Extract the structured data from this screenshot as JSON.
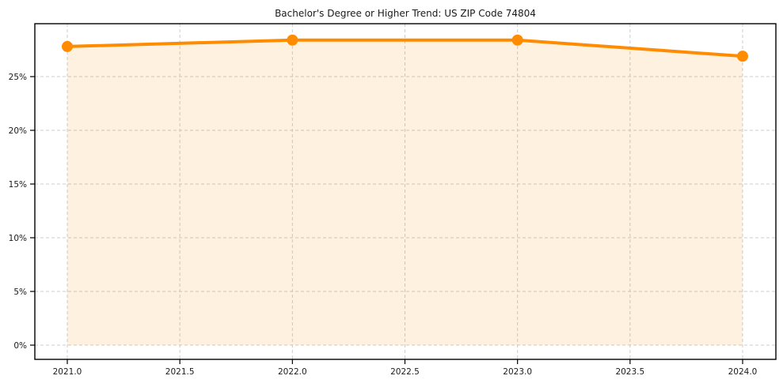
{
  "chart_data": {
    "type": "line",
    "title": "Bachelor's Degree or Higher Trend: US ZIP Code 74804",
    "x": [
      2021,
      2022,
      2023,
      2024
    ],
    "values": [
      27.8,
      28.4,
      28.4,
      26.9
    ],
    "x_ticks": [
      2021.0,
      2021.5,
      2022.0,
      2022.5,
      2023.0,
      2023.5,
      2024.0
    ],
    "x_tick_labels": [
      "2021.0",
      "2021.5",
      "2022.0",
      "2022.5",
      "2023.0",
      "2023.5",
      "2024.0"
    ],
    "y_ticks": [
      0,
      5,
      10,
      15,
      20,
      25
    ],
    "y_tick_labels": [
      "0%",
      "5%",
      "10%",
      "15%",
      "20%",
      "25%"
    ],
    "xlim": [
      2020.86,
      2024.15
    ],
    "ylim": [
      -1.3,
      29.9
    ],
    "grid": true,
    "grid_style": "dashed",
    "legend_position": "none",
    "line_color": "#ff8c00",
    "marker_color": "#ff8c00",
    "fill_color": "rgba(255,140,0,0.12)",
    "grid_color": "#cccccc",
    "spine_color": "#000000",
    "area_fill": true,
    "marker": "circle"
  }
}
